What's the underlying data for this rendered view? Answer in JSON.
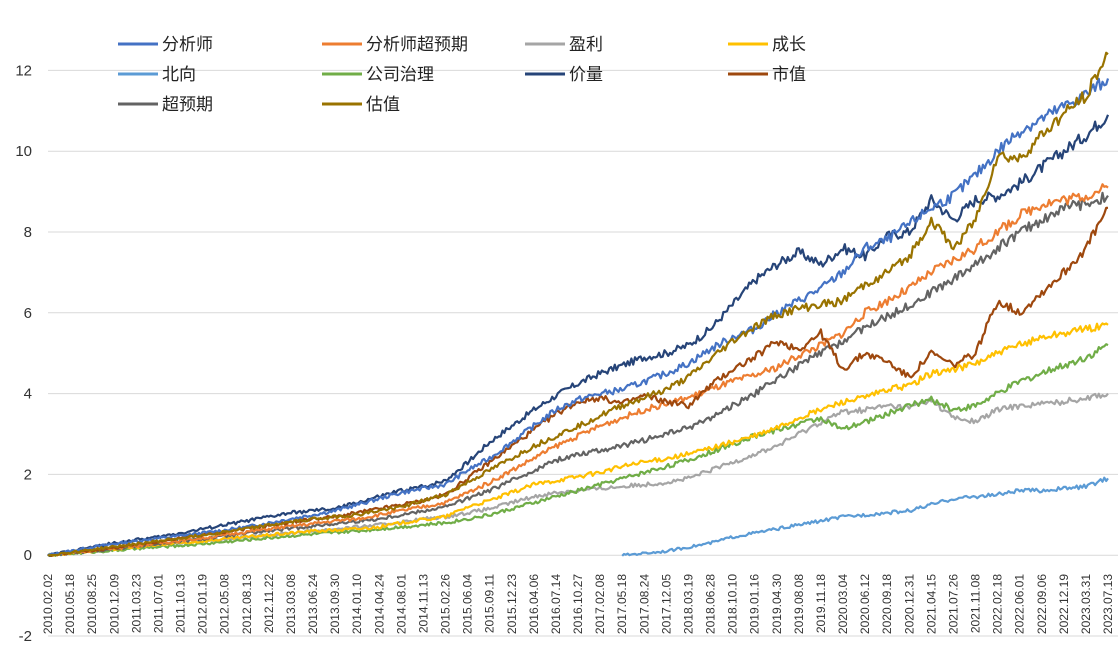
{
  "chart_data": {
    "type": "line",
    "title": "",
    "xlabel": "",
    "ylabel": "",
    "ylim": [
      -2,
      13
    ],
    "yticks": [
      -2,
      0,
      2,
      4,
      6,
      8,
      10,
      12
    ],
    "grid": "horizontal",
    "legend_position": "top-left",
    "x_labels": [
      "2010.02.02",
      "2010.05.18",
      "2010.08.25",
      "2010.12.09",
      "2011.03.23",
      "2011.07.01",
      "2011.10.13",
      "2012.01.19",
      "2012.05.08",
      "2012.08.13",
      "2012.11.22",
      "2013.03.08",
      "2013.06.24",
      "2013.09.30",
      "2014.01.10",
      "2014.04.24",
      "2014.08.01",
      "2014.11.13",
      "2015.02.26",
      "2015.06.04",
      "2015.09.11",
      "2015.12.23",
      "2016.04.06",
      "2016.07.14",
      "2016.10.27",
      "2017.02.08",
      "2017.05.18",
      "2017.08.24",
      "2017.12.05",
      "2018.03.19",
      "2018.06.28",
      "2018.10.10",
      "2019.01.16",
      "2019.04.30",
      "2019.08.08",
      "2019.11.18",
      "2020.03.04",
      "2020.06.12",
      "2020.09.18",
      "2020.12.31",
      "2021.04.15",
      "2021.07.26",
      "2021.11.08",
      "2022.02.18",
      "2022.06.01",
      "2022.09.06",
      "2022.12.19",
      "2023.03.31",
      "2023.07.13"
    ],
    "series": [
      {
        "name": "分析师",
        "color": "#4472C4",
        "values": [
          0,
          0.1,
          0.2,
          0.28,
          0.35,
          0.42,
          0.48,
          0.55,
          0.62,
          0.7,
          0.8,
          0.9,
          1.0,
          1.1,
          1.25,
          1.4,
          1.55,
          1.65,
          1.75,
          2.1,
          2.4,
          2.8,
          3.2,
          3.6,
          3.85,
          4.0,
          4.1,
          4.3,
          4.5,
          4.75,
          5.1,
          5.4,
          5.6,
          6.0,
          6.3,
          6.6,
          7.0,
          7.6,
          7.8,
          8.2,
          8.6,
          8.9,
          9.4,
          10.0,
          10.5,
          10.8,
          11.1,
          11.4,
          11.8
        ]
      },
      {
        "name": "分析师超预期",
        "color": "#ED7D31",
        "values": [
          0,
          0.06,
          0.12,
          0.18,
          0.24,
          0.3,
          0.36,
          0.42,
          0.5,
          0.58,
          0.65,
          0.72,
          0.78,
          0.85,
          0.9,
          1.0,
          1.1,
          1.2,
          1.3,
          1.55,
          1.8,
          2.1,
          2.4,
          2.7,
          2.95,
          3.2,
          3.4,
          3.6,
          3.75,
          3.9,
          4.1,
          4.3,
          4.45,
          4.65,
          4.95,
          5.2,
          5.5,
          6.0,
          6.3,
          6.6,
          7.0,
          7.3,
          7.6,
          8.0,
          8.4,
          8.7,
          8.8,
          8.9,
          9.1
        ]
      },
      {
        "name": "盈利",
        "color": "#A5A5A5",
        "values": [
          0,
          0.05,
          0.1,
          0.15,
          0.2,
          0.25,
          0.3,
          0.35,
          0.4,
          0.45,
          0.5,
          0.55,
          0.6,
          0.65,
          0.7,
          0.75,
          0.82,
          0.9,
          0.95,
          1.05,
          1.15,
          1.3,
          1.45,
          1.55,
          1.6,
          1.65,
          1.7,
          1.75,
          1.8,
          1.9,
          2.1,
          2.3,
          2.5,
          2.7,
          3.0,
          3.3,
          3.55,
          3.6,
          3.7,
          3.65,
          3.85,
          3.4,
          3.3,
          3.6,
          3.7,
          3.75,
          3.8,
          3.9,
          4.0
        ]
      },
      {
        "name": "成长",
        "color": "#FFC000",
        "values": [
          0,
          0.05,
          0.1,
          0.15,
          0.2,
          0.25,
          0.3,
          0.35,
          0.4,
          0.45,
          0.5,
          0.55,
          0.6,
          0.62,
          0.65,
          0.7,
          0.8,
          0.88,
          0.95,
          1.2,
          1.35,
          1.55,
          1.75,
          1.85,
          1.95,
          2.05,
          2.2,
          2.3,
          2.4,
          2.5,
          2.65,
          2.8,
          2.95,
          3.15,
          3.4,
          3.6,
          3.8,
          3.9,
          4.1,
          4.2,
          4.5,
          4.6,
          4.75,
          5.0,
          5.2,
          5.4,
          5.5,
          5.6,
          5.7
        ]
      },
      {
        "name": "北向",
        "color": "#5B9BD5",
        "values": [
          null,
          null,
          null,
          null,
          null,
          null,
          null,
          null,
          null,
          null,
          null,
          null,
          null,
          null,
          null,
          null,
          null,
          null,
          null,
          null,
          null,
          null,
          null,
          null,
          null,
          null,
          0,
          0.05,
          0.1,
          0.2,
          0.3,
          0.45,
          0.55,
          0.65,
          0.75,
          0.85,
          0.95,
          1.0,
          1.05,
          1.1,
          1.25,
          1.4,
          1.45,
          1.5,
          1.6,
          1.6,
          1.65,
          1.7,
          1.9
        ]
      },
      {
        "name": "公司治理",
        "color": "#70AD47",
        "values": [
          0,
          0.04,
          0.08,
          0.12,
          0.16,
          0.2,
          0.24,
          0.28,
          0.33,
          0.38,
          0.43,
          0.48,
          0.52,
          0.56,
          0.6,
          0.65,
          0.7,
          0.75,
          0.8,
          0.9,
          1.0,
          1.15,
          1.3,
          1.45,
          1.6,
          1.75,
          1.9,
          2.05,
          2.2,
          2.35,
          2.55,
          2.75,
          2.95,
          3.1,
          3.25,
          3.4,
          3.1,
          3.3,
          3.5,
          3.7,
          3.85,
          3.6,
          3.7,
          4.0,
          4.3,
          4.5,
          4.7,
          4.9,
          5.2
        ]
      },
      {
        "name": "价量",
        "color": "#264478",
        "values": [
          0,
          0.1,
          0.2,
          0.3,
          0.38,
          0.45,
          0.55,
          0.65,
          0.75,
          0.85,
          0.95,
          1.05,
          1.1,
          1.15,
          1.3,
          1.45,
          1.6,
          1.7,
          1.85,
          2.3,
          2.8,
          3.2,
          3.6,
          3.95,
          4.25,
          4.5,
          4.7,
          4.9,
          5.0,
          5.2,
          5.6,
          6.2,
          6.8,
          7.2,
          7.5,
          7.2,
          7.6,
          7.4,
          7.9,
          8.0,
          8.8,
          8.3,
          8.8,
          8.9,
          9.2,
          9.6,
          10.0,
          10.4,
          10.9
        ]
      },
      {
        "name": "市值",
        "color": "#9E480E",
        "values": [
          0,
          0.06,
          0.12,
          0.18,
          0.26,
          0.34,
          0.42,
          0.5,
          0.58,
          0.66,
          0.74,
          0.82,
          0.9,
          0.95,
          1.05,
          1.15,
          1.25,
          1.35,
          1.5,
          1.9,
          2.3,
          2.7,
          3.1,
          3.5,
          3.8,
          3.9,
          3.75,
          3.95,
          3.8,
          3.7,
          4.2,
          4.6,
          4.9,
          5.3,
          5.1,
          5.5,
          4.6,
          5.0,
          4.8,
          4.4,
          5.0,
          4.7,
          5.0,
          6.3,
          6.0,
          6.5,
          7.0,
          7.6,
          8.6
        ]
      },
      {
        "name": "超预期",
        "color": "#636363",
        "values": [
          0,
          0.05,
          0.1,
          0.16,
          0.22,
          0.28,
          0.34,
          0.4,
          0.47,
          0.54,
          0.6,
          0.66,
          0.72,
          0.78,
          0.84,
          0.9,
          1.0,
          1.1,
          1.2,
          1.4,
          1.6,
          1.85,
          2.1,
          2.35,
          2.5,
          2.6,
          2.7,
          2.85,
          3.0,
          3.15,
          3.4,
          3.7,
          4.0,
          4.35,
          4.7,
          5.0,
          5.3,
          5.65,
          5.9,
          6.2,
          6.5,
          6.85,
          7.2,
          7.6,
          8.0,
          8.3,
          8.6,
          8.7,
          8.9
        ]
      },
      {
        "name": "估值",
        "color": "#997300",
        "values": [
          0,
          0.07,
          0.14,
          0.21,
          0.28,
          0.35,
          0.42,
          0.5,
          0.58,
          0.66,
          0.74,
          0.82,
          0.9,
          0.95,
          1.0,
          1.1,
          1.2,
          1.35,
          1.5,
          1.8,
          2.1,
          2.4,
          2.7,
          2.95,
          3.2,
          3.45,
          3.7,
          3.9,
          4.1,
          4.4,
          4.85,
          5.3,
          5.65,
          5.95,
          6.1,
          6.2,
          6.3,
          6.7,
          7.0,
          7.4,
          8.3,
          7.6,
          8.3,
          9.9,
          9.8,
          10.4,
          10.9,
          11.4,
          12.4
        ]
      }
    ]
  }
}
